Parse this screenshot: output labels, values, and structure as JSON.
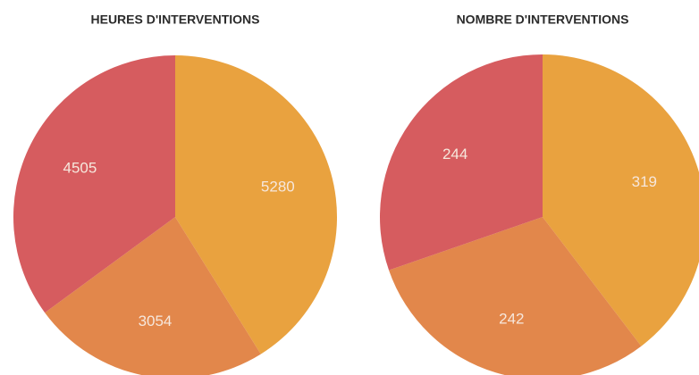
{
  "chart_data": [
    {
      "type": "pie",
      "title": "HEURES D'INTERVENTIONS",
      "values": [
        5280,
        3054,
        4505
      ],
      "colors": [
        "#e9a23f",
        "#e2874b",
        "#d65c5f"
      ]
    },
    {
      "type": "pie",
      "title": "NOMBRE D'INTERVENTIONS",
      "values": [
        319,
        242,
        244
      ],
      "colors": [
        "#e9a23f",
        "#e2874b",
        "#d65c5f"
      ]
    }
  ]
}
